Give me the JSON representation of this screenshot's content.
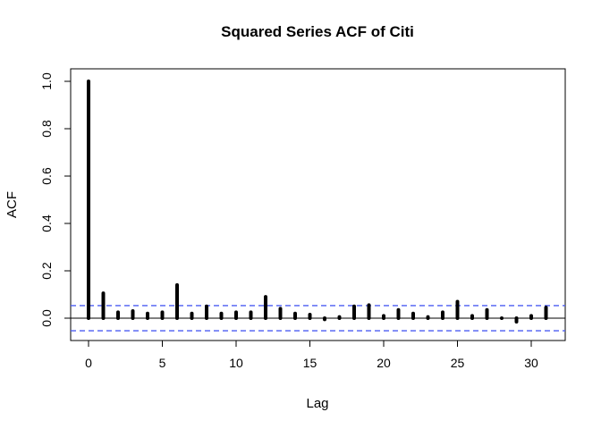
{
  "chart_data": {
    "type": "bar",
    "title": "Squared Series ACF of Citi",
    "xlabel": "Lag",
    "ylabel": "ACF",
    "xlim": [
      0,
      31
    ],
    "ylim": [
      -0.05,
      1.0
    ],
    "xticks": [
      0,
      5,
      10,
      15,
      20,
      25,
      30
    ],
    "yticks": [
      0.0,
      0.2,
      0.4,
      0.6,
      0.8,
      1.0
    ],
    "x": [
      0,
      1,
      2,
      3,
      4,
      5,
      6,
      7,
      8,
      9,
      10,
      11,
      12,
      13,
      14,
      15,
      16,
      17,
      18,
      19,
      20,
      21,
      22,
      23,
      24,
      25,
      26,
      27,
      28,
      29,
      30,
      31
    ],
    "values": [
      1.0,
      0.105,
      0.025,
      0.03,
      0.02,
      0.025,
      0.14,
      0.02,
      0.05,
      0.02,
      0.025,
      0.025,
      0.09,
      0.04,
      0.02,
      0.015,
      -0.005,
      0.005,
      0.05,
      0.055,
      0.01,
      0.035,
      0.02,
      0.005,
      0.025,
      0.07,
      0.01,
      0.035,
      0.0,
      -0.015,
      0.01,
      0.045
    ],
    "confidence_limit": 0.053,
    "colors": {
      "bars": "#000000",
      "ci": "#4a5cf2"
    }
  }
}
